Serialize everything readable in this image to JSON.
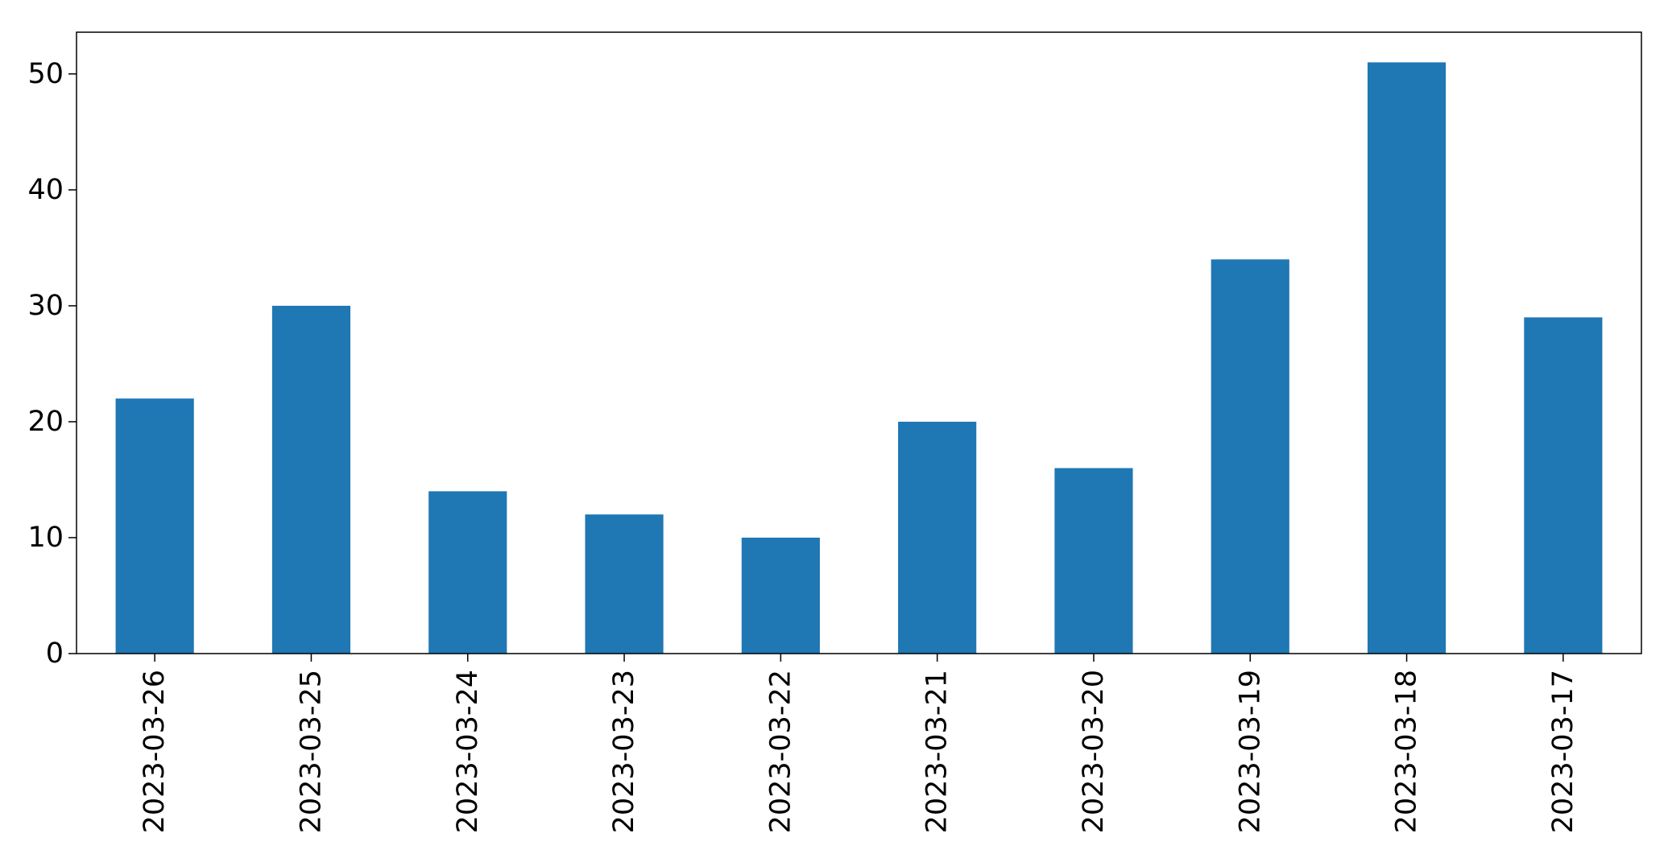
{
  "chart_data": {
    "type": "bar",
    "title": "",
    "xlabel": "",
    "ylabel": "",
    "categories": [
      "2023-03-26",
      "2023-03-25",
      "2023-03-24",
      "2023-03-23",
      "2023-03-22",
      "2023-03-21",
      "2023-03-20",
      "2023-03-19",
      "2023-03-18",
      "2023-03-17"
    ],
    "values": [
      22,
      30,
      14,
      12,
      10,
      20,
      16,
      34,
      51,
      29
    ],
    "ylim": [
      0,
      53.6
    ],
    "yticks": [
      0,
      10,
      20,
      30,
      40,
      50
    ],
    "grid": false,
    "bar_color": "#1f77b4"
  }
}
